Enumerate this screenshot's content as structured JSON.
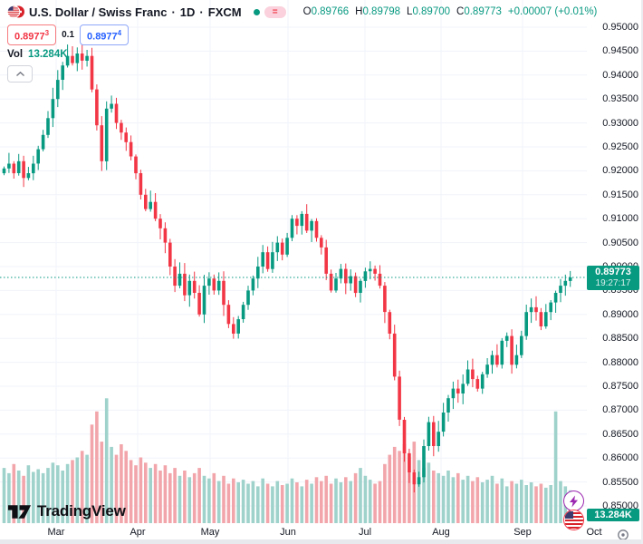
{
  "header": {
    "symbol_title": "U.S. Dollar / Swiss Franc",
    "sep1": "·",
    "interval": "1D",
    "sep2": "·",
    "exchange": "FXCM",
    "delay_badge": "=",
    "ohlc": {
      "o_label": "O",
      "o": "0.89766",
      "h_label": "H",
      "h": "0.89798",
      "l_label": "L",
      "l": "0.89700",
      "c_label": "C",
      "c": "0.89773",
      "change": "+0.00007 (+0.01%)"
    },
    "bid": "0.8977",
    "bid_sup": "3",
    "spread": "0.1",
    "ask": "0.8977",
    "ask_sup": "4",
    "vol_label": "Vol",
    "vol_value": "13.284K"
  },
  "price_badge": {
    "price": "0.89773",
    "countdown": "19:27:17"
  },
  "volume_badge": "13.284K",
  "logo_text": "TradingView",
  "colors": {
    "up": "#089981",
    "down": "#f23645",
    "vol_up": "#9ed2cb",
    "vol_down": "#f2a6ab",
    "grid": "#f0f3fa",
    "axis_text": "#131722",
    "accent_blue": "#2962ff",
    "badge_green": "#089981",
    "bolt_purple": "#9c27b0"
  },
  "chart_data": {
    "type": "candlestick+volume",
    "title": "U.S. Dollar / Swiss Franc, 1D, FXCM",
    "current_price": 0.89773,
    "y_axis": {
      "min": 0.85,
      "max": 0.95,
      "step": 0.005,
      "labels": [
        "0.95000",
        "0.94500",
        "0.94000",
        "0.93500",
        "0.93000",
        "0.92500",
        "0.92000",
        "0.91500",
        "0.91000",
        "0.90500",
        "0.90000",
        "0.89500",
        "0.89000",
        "0.88500",
        "0.88000",
        "0.87500",
        "0.87000",
        "0.86500",
        "0.86000",
        "0.85500",
        "0.85000"
      ]
    },
    "x_axis": {
      "labels": [
        "Mar",
        "Apr",
        "May",
        "Jun",
        "Jul",
        "Aug",
        "Sep",
        "Oct"
      ],
      "positions": [
        62,
        152,
        232,
        318,
        403,
        487,
        577,
        656
      ],
      "grid_positions": [
        62,
        152,
        232,
        318,
        403,
        487,
        577
      ]
    },
    "open_first": 0.9195,
    "closes": [
      0.9205,
      0.9215,
      0.9195,
      0.922,
      0.9185,
      0.9195,
      0.9215,
      0.9245,
      0.9275,
      0.931,
      0.935,
      0.939,
      0.942,
      0.944,
      0.9425,
      0.9445,
      0.943,
      0.944,
      0.937,
      0.9295,
      0.922,
      0.933,
      0.934,
      0.93,
      0.928,
      0.926,
      0.923,
      0.9195,
      0.915,
      0.912,
      0.9135,
      0.91,
      0.908,
      0.905,
      0.9,
      0.896,
      0.8985,
      0.894,
      0.897,
      0.8945,
      0.89,
      0.896,
      0.8975,
      0.895,
      0.897,
      0.892,
      0.888,
      0.886,
      0.889,
      0.892,
      0.895,
      0.8975,
      0.9,
      0.903,
      0.8995,
      0.903,
      0.905,
      0.9025,
      0.906,
      0.91,
      0.9085,
      0.911,
      0.9075,
      0.9095,
      0.906,
      0.904,
      0.8985,
      0.895,
      0.8975,
      0.8995,
      0.8965,
      0.898,
      0.8945,
      0.897,
      0.899,
      0.8995,
      0.8985,
      0.896,
      0.8905,
      0.886,
      0.877,
      0.868,
      0.861,
      0.857,
      0.8545,
      0.856,
      0.8625,
      0.8675,
      0.8625,
      0.8655,
      0.8695,
      0.8725,
      0.8745,
      0.8735,
      0.8755,
      0.8785,
      0.8765,
      0.8745,
      0.8775,
      0.8795,
      0.8815,
      0.8795,
      0.8845,
      0.8855,
      0.8795,
      0.8815,
      0.8855,
      0.8905,
      0.8915,
      0.8905,
      0.8875,
      0.8905,
      0.8925,
      0.8945,
      0.896,
      0.897,
      0.89773
    ],
    "volumes_rel": [
      0.42,
      0.38,
      0.45,
      0.4,
      0.36,
      0.44,
      0.39,
      0.41,
      0.38,
      0.42,
      0.46,
      0.44,
      0.4,
      0.45,
      0.48,
      0.5,
      0.55,
      0.52,
      0.75,
      0.85,
      0.62,
      0.95,
      0.58,
      0.52,
      0.6,
      0.55,
      0.48,
      0.44,
      0.5,
      0.46,
      0.42,
      0.45,
      0.4,
      0.44,
      0.38,
      0.42,
      0.36,
      0.4,
      0.35,
      0.38,
      0.42,
      0.36,
      0.34,
      0.38,
      0.32,
      0.36,
      0.3,
      0.34,
      0.31,
      0.33,
      0.3,
      0.32,
      0.28,
      0.34,
      0.3,
      0.28,
      0.32,
      0.29,
      0.3,
      0.34,
      0.31,
      0.28,
      0.33,
      0.3,
      0.35,
      0.32,
      0.36,
      0.3,
      0.34,
      0.31,
      0.35,
      0.32,
      0.38,
      0.42,
      0.36,
      0.33,
      0.3,
      0.32,
      0.45,
      0.52,
      0.58,
      0.55,
      0.6,
      0.5,
      0.62,
      0.48,
      0.42,
      0.46,
      0.4,
      0.38,
      0.36,
      0.4,
      0.35,
      0.38,
      0.33,
      0.36,
      0.32,
      0.35,
      0.31,
      0.33,
      0.36,
      0.3,
      0.34,
      0.28,
      0.32,
      0.3,
      0.33,
      0.29,
      0.31,
      0.28,
      0.3,
      0.27,
      0.29,
      0.85,
      0.32,
      0.28,
      0.25
    ],
    "current_volume_label": "13.284K",
    "legend_position": "none",
    "grid": true
  }
}
